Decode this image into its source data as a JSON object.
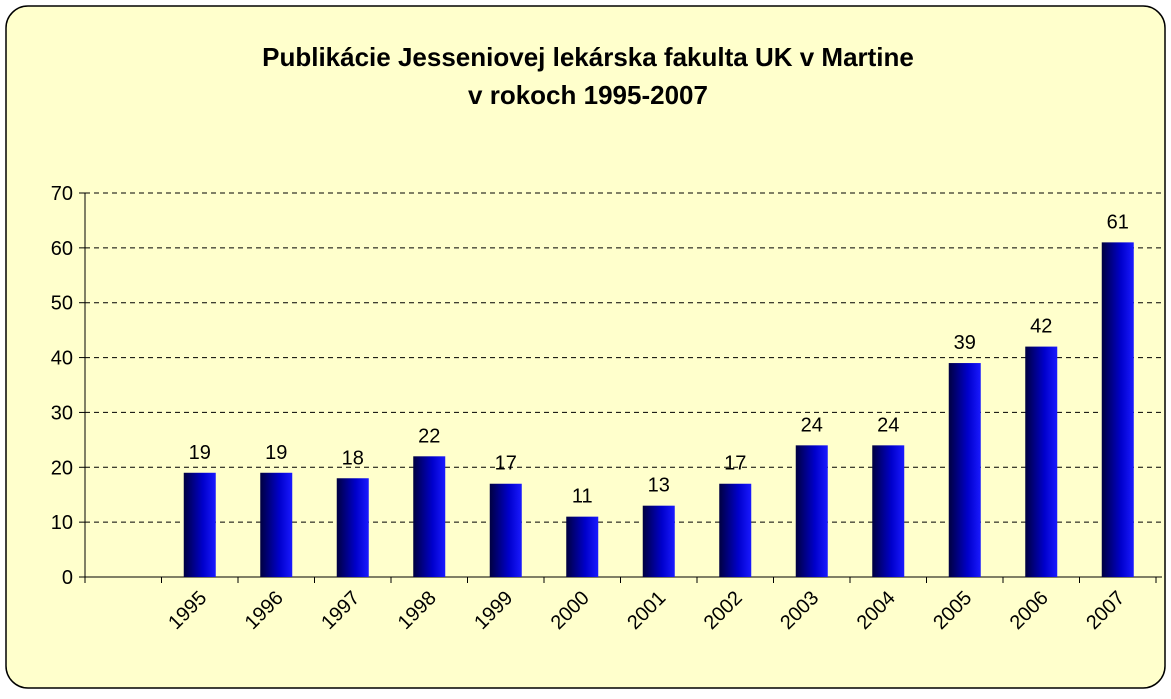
{
  "chart_data": {
    "type": "bar",
    "title": "Publikácie Jesseniovej lekárska fakulta UK v Martine",
    "subtitle": "v rokoch 1995-2007",
    "categories": [
      null,
      "1995",
      "1996",
      "1997",
      "1998",
      "1999",
      "2000",
      "2001",
      "2002",
      "2003",
      "2004",
      "2005",
      "2006",
      "2007"
    ],
    "values": [
      null,
      19,
      19,
      18,
      22,
      17,
      11,
      13,
      17,
      24,
      24,
      39,
      42,
      61
    ],
    "color": "#0000cc",
    "ylim": [
      0,
      70
    ],
    "yticks": [
      0,
      10,
      20,
      30,
      40,
      50,
      60,
      70
    ],
    "grid": true
  }
}
